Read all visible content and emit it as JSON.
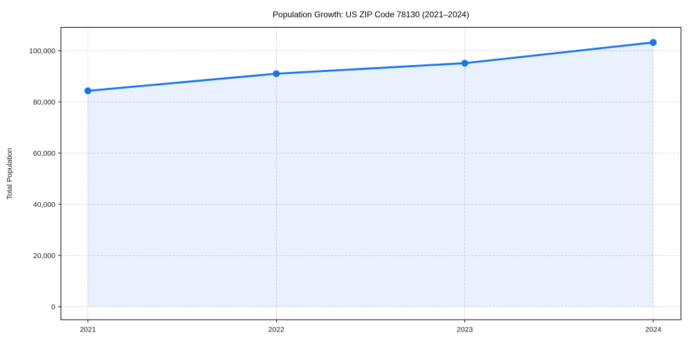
{
  "chart_data": {
    "type": "line",
    "title": "Population Growth: US ZIP Code 78130 (2021–2024)",
    "xlabel": "",
    "ylabel": "Total Population",
    "categories": [
      "2021",
      "2022",
      "2023",
      "2024"
    ],
    "series": [
      {
        "name": "Total Population",
        "values": [
          84300,
          91000,
          95100,
          103200
        ]
      }
    ],
    "y_axis": {
      "ylim": [
        -5100,
        109100
      ],
      "ticks": [
        0,
        20000,
        40000,
        60000,
        80000,
        100000
      ],
      "tick_labels": [
        "0",
        "20,000",
        "40,000",
        "60,000",
        "80,000",
        "100,000"
      ]
    },
    "style": {
      "line_color": "#1a73e8",
      "fill_color": "#1a73e8",
      "fill_opacity": 0.1,
      "marker": "circle",
      "marker_radius": 5,
      "area_fill_to_value": 0,
      "grid": true,
      "grid_style": "dashed",
      "legend": "none",
      "background": "#ffffff"
    }
  }
}
